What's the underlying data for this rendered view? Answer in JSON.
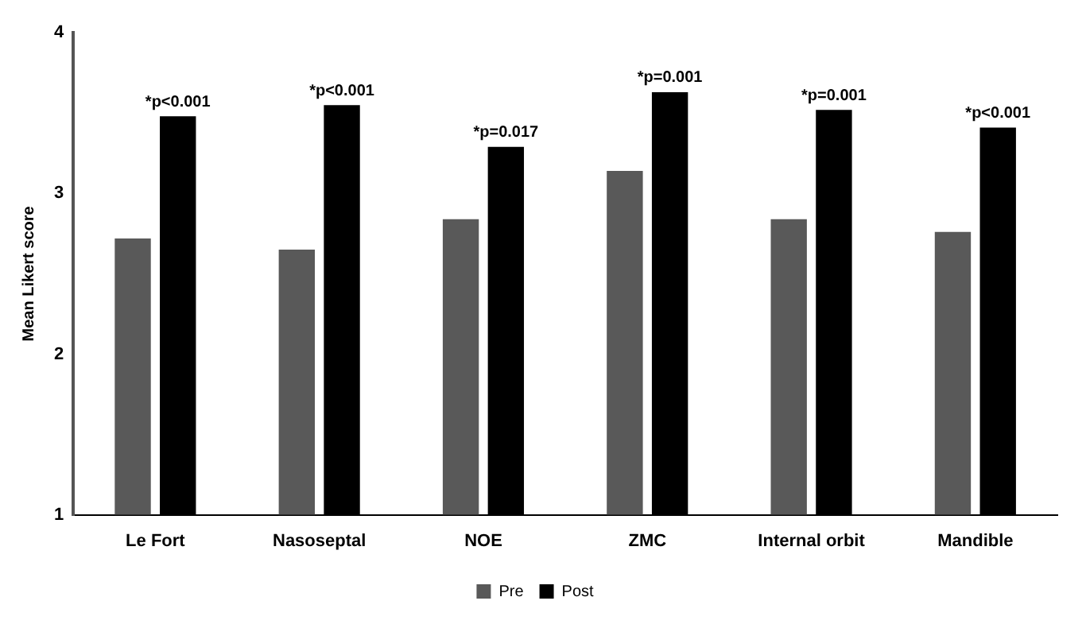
{
  "chart_data": {
    "type": "bar",
    "ylabel": "Mean Likert score",
    "categories": [
      "Le Fort",
      "Nasoseptal",
      "NOE",
      "ZMC",
      "Internal orbit",
      "Mandible"
    ],
    "series": [
      {
        "name": "Pre",
        "color": "#595959",
        "values": [
          2.72,
          2.65,
          2.84,
          3.14,
          2.84,
          2.76
        ]
      },
      {
        "name": "Post",
        "color": "#000000",
        "values": [
          3.48,
          3.55,
          3.29,
          3.63,
          3.52,
          3.41
        ]
      }
    ],
    "ylim": [
      1,
      4
    ],
    "yticks": [
      1,
      2,
      3,
      4
    ],
    "grid": false,
    "legend": "bottom",
    "annotations": [
      "*p<0.001",
      "*p<0.001",
      "*p=0.017",
      "*p=0.001",
      "*p=0.001",
      "*p<0.001"
    ]
  }
}
